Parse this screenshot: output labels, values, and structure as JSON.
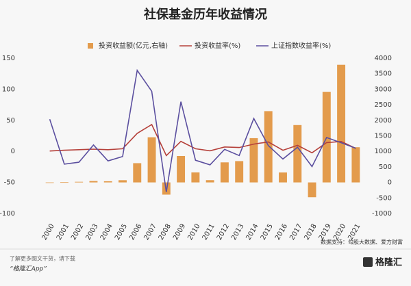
{
  "chart_data": {
    "type": "bar_line",
    "title": "社保基金历年收益情况",
    "categories": [
      "2000",
      "2001",
      "2002",
      "2003",
      "2004",
      "2005",
      "2006",
      "2007",
      "2008",
      "2009",
      "2010",
      "2011",
      "2012",
      "2013",
      "2014",
      "2015",
      "2016",
      "2017",
      "2018",
      "2019",
      "2020",
      "2021"
    ],
    "series": [
      {
        "name": "投资收益额(亿元,右轴)",
        "type": "bar",
        "axis": "y2",
        "color": "#e39b4c",
        "values": [
          0.17,
          7.42,
          19.77,
          44.71,
          36.72,
          71.22,
          619.79,
          1453.5,
          -393.72,
          850.49,
          321.22,
          73.37,
          645.36,
          685.87,
          1424.6,
          2294.61,
          319.4,
          1846.14,
          -476.85,
          2917.18,
          3786.6,
          1131.88
        ]
      },
      {
        "name": "投资收益率(%)",
        "type": "line",
        "color": "#b5403a",
        "values": [
          0.57,
          1.73,
          2.59,
          3.56,
          2.61,
          4.16,
          29.01,
          43.19,
          -6.79,
          16.12,
          4.23,
          0.84,
          7.01,
          6.2,
          11.69,
          15.19,
          1.73,
          9.68,
          -2.28,
          14.06,
          15.84,
          4.89
        ]
      },
      {
        "name": "上证指数收益率(%)",
        "type": "line",
        "color": "#5b4f9f",
        "values": [
          51.73,
          -20.62,
          -17.52,
          10.27,
          -15.4,
          -8.33,
          130.43,
          96.66,
          -65.39,
          79.98,
          -14.31,
          -21.68,
          3.17,
          -6.75,
          52.87,
          9.41,
          -12.31,
          6.56,
          -24.59,
          22.3,
          13.87,
          4.8
        ]
      }
    ],
    "ylim": [
      -100,
      150
    ],
    "yticks": [
      -100,
      -50,
      0,
      50,
      100,
      150
    ],
    "y2lim": [
      -1000,
      4000
    ],
    "y2ticks": [
      -1000,
      -500,
      0,
      500,
      1000,
      1500,
      2000,
      2500,
      3000,
      3500,
      4000
    ],
    "grid": false,
    "source": "数据支持：勾股大数据、爱方财富"
  },
  "footer": {
    "note": "了解更多图文干货，请下载",
    "app": "“格隆汇App”",
    "brand": "格隆汇"
  }
}
